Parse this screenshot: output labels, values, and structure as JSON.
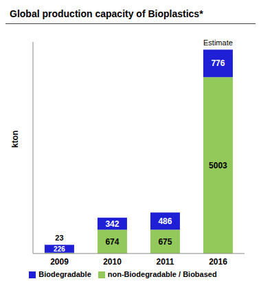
{
  "chart_data": {
    "type": "bar",
    "title": "Global production capacity of Bioplastics*",
    "categories": [
      "2009",
      "2010",
      "2011",
      "2016"
    ],
    "series": [
      {
        "name": "non-Biodegradable / Biobased",
        "color": "#92c95a",
        "values": [
          23,
          674,
          675,
          5003
        ]
      },
      {
        "name": "Biodegradable",
        "color": "#1f1fd6",
        "values": [
          226,
          342,
          486,
          776
        ]
      }
    ],
    "y_label": "kton",
    "ylim": [
      0,
      6000
    ],
    "stacked": true,
    "data_labels": true,
    "tick_labels": "x",
    "legend": "bottom",
    "annotations": [
      {
        "text": "Estimate",
        "x": "2016"
      }
    ]
  }
}
